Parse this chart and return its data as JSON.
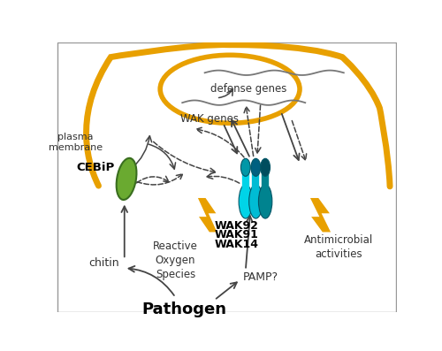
{
  "bg_color": "#ffffff",
  "cell_membrane_color": "#E8A000",
  "nucleus_color": "#E8A000",
  "cebip_color": "#6aaa30",
  "wak_colors": [
    "#00bcd4",
    "#00acc1",
    "#006064"
  ],
  "lightning_color": "#E8A000",
  "text_pathogen": "Pathogen",
  "text_pamp": "PAMP?",
  "text_chitin": "chitin",
  "text_cebip": "CEBiP",
  "text_wak14": "WAK14",
  "text_wak91": "WAK91",
  "text_wak92": "WAK92",
  "text_ros": "Reactive\nOxygen\nSpecies",
  "text_antimicrobial": "Antimicrobial\nactivities",
  "text_plasma": "plasma\nmembrane",
  "text_wak_genes": "WAK genes",
  "text_defense_genes": "defense genes",
  "arrow_color": "#444444"
}
